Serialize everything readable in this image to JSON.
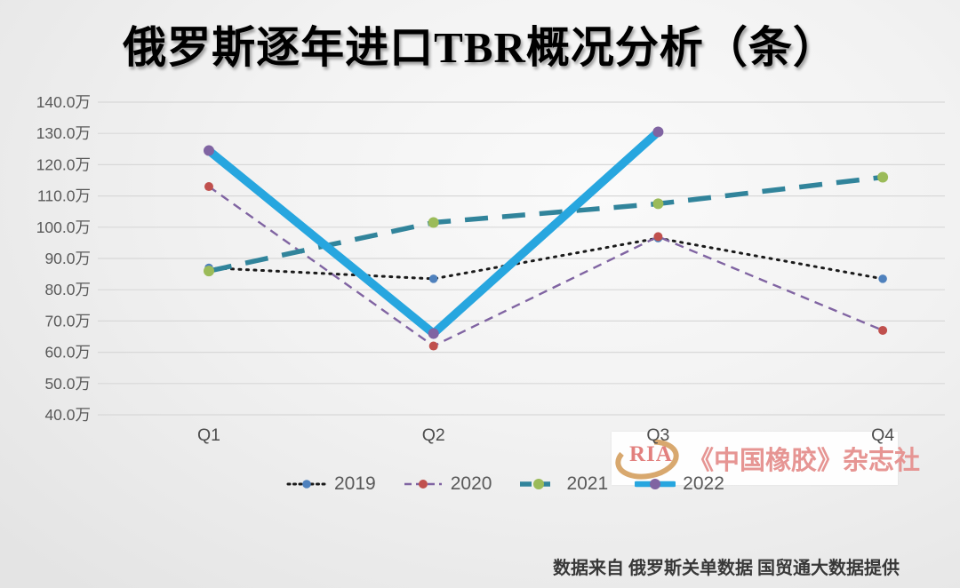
{
  "chart_data": {
    "type": "line",
    "title": "俄罗斯逐年进口TBR概况分析（条）",
    "unit": "万条",
    "categories": [
      "Q1",
      "Q2",
      "Q3",
      "Q4"
    ],
    "ylim": [
      40,
      140
    ],
    "ytick_step": 10,
    "yticks": [
      "140.0万",
      "130.0万",
      "120.0万",
      "110.0万",
      "100.0万",
      "90.0万",
      "80.0万",
      "70.0万",
      "60.0万",
      "50.0万",
      "40.0万"
    ],
    "grid": true,
    "grid_color": "#d8d8d8",
    "legend_position": "bottom",
    "series": [
      {
        "name": "2019",
        "values": [
          87,
          83.5,
          96.5,
          83.5
        ],
        "style": "dotted",
        "line_color": "#1a1a1a",
        "marker_color": "#4F81BD"
      },
      {
        "name": "2020",
        "values": [
          113,
          62,
          97,
          67
        ],
        "style": "dashed",
        "line_color": "#8064A2",
        "marker_color": "#C0504D"
      },
      {
        "name": "2021",
        "values": [
          86,
          101.5,
          107.5,
          116
        ],
        "style": "long-dash",
        "line_color": "#31849B",
        "marker_color": "#9BBB59"
      },
      {
        "name": "2022",
        "values": [
          124.5,
          66,
          130.5,
          null
        ],
        "style": "solid-thick",
        "line_color": "#27A6DF",
        "marker_color": "#8064A2"
      }
    ]
  },
  "watermark": {
    "logo_text": "RIA",
    "text": "《中国橡胶》杂志社",
    "logo_ring_color": "#D8A86E",
    "text_color": "#E69593"
  },
  "footer": {
    "source": "数据来自 俄罗斯关单数据  国贸通大数据提供"
  }
}
